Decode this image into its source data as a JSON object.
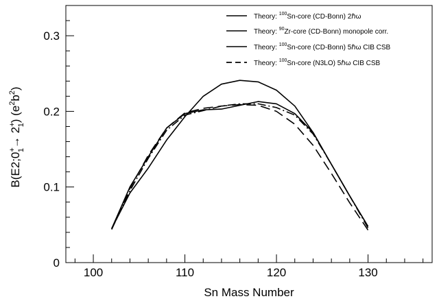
{
  "chart_data": {
    "type": "line",
    "xlabel": "Sn Mass Number",
    "ylabel_parts": {
      "a": "B(E2;0",
      "b": "+",
      "c": "1",
      "d": "→ 2",
      "e": "+",
      "f": "1",
      "g": ")  (e",
      "h": "2",
      "i": "b",
      "j": "2",
      "k": ")"
    },
    "xlim": [
      97,
      137
    ],
    "ylim": [
      0,
      0.34
    ],
    "x_ticks": [
      100,
      110,
      120,
      130
    ],
    "y_ticks": [
      0,
      0.1,
      0.2,
      0.3
    ],
    "x_tick_labels": [
      "100",
      "110",
      "120",
      "130"
    ],
    "y_tick_labels": [
      "0",
      "0.1",
      "0.2",
      "0.3"
    ],
    "legend_position": "top-right",
    "series": [
      {
        "name_parts": {
          "pre": "Theory: ",
          "sup": "100",
          "post": "Sn-core (CD-Bonn) 2ℏω"
        },
        "dash": "solid",
        "x": [
          102,
          104,
          106,
          108,
          110,
          112,
          114,
          116,
          118,
          120,
          122,
          124,
          126,
          128,
          130
        ],
        "y": [
          0.045,
          0.092,
          0.125,
          0.162,
          0.193,
          0.22,
          0.236,
          0.241,
          0.239,
          0.228,
          0.207,
          0.172,
          0.13,
          0.088,
          0.048
        ]
      },
      {
        "name_parts": {
          "pre": "Theory: ",
          "sup": "90",
          "post": "Zr-core  (CD-Bonn) monopole corr."
        },
        "dash": "solid",
        "x": [
          102,
          104,
          106,
          108,
          110,
          112,
          114,
          116,
          118,
          120,
          122,
          124,
          126,
          128,
          130
        ],
        "y": [
          0.045,
          0.1,
          0.14,
          0.178,
          0.197,
          0.202,
          0.203,
          0.208,
          0.213,
          0.21,
          0.197,
          0.172,
          0.13,
          0.088,
          0.048
        ]
      },
      {
        "name_parts": {
          "pre": "Theory: ",
          "sup": "100",
          "post": "Sn-core (CD-Bonn) 5ℏω CIB CSB"
        },
        "dash": "dashdot",
        "x": [
          102,
          104,
          106,
          108,
          110,
          112,
          114,
          116,
          118,
          120,
          122,
          124,
          126,
          128,
          130
        ],
        "y": [
          0.044,
          0.095,
          0.138,
          0.175,
          0.195,
          0.201,
          0.207,
          0.21,
          0.21,
          0.205,
          0.195,
          0.17,
          0.13,
          0.088,
          0.046
        ]
      },
      {
        "name_parts": {
          "pre": "Theory: ",
          "sup": "100",
          "post": "Sn-core (N3LO) 5ℏω CIB CSB"
        },
        "dash": "dashed",
        "x": [
          102,
          104,
          106,
          108,
          110,
          112,
          114,
          116,
          118,
          120,
          122,
          124,
          126,
          128,
          130
        ],
        "y": [
          0.044,
          0.098,
          0.142,
          0.178,
          0.198,
          0.204,
          0.207,
          0.209,
          0.208,
          0.2,
          0.183,
          0.155,
          0.118,
          0.079,
          0.043
        ]
      }
    ]
  }
}
